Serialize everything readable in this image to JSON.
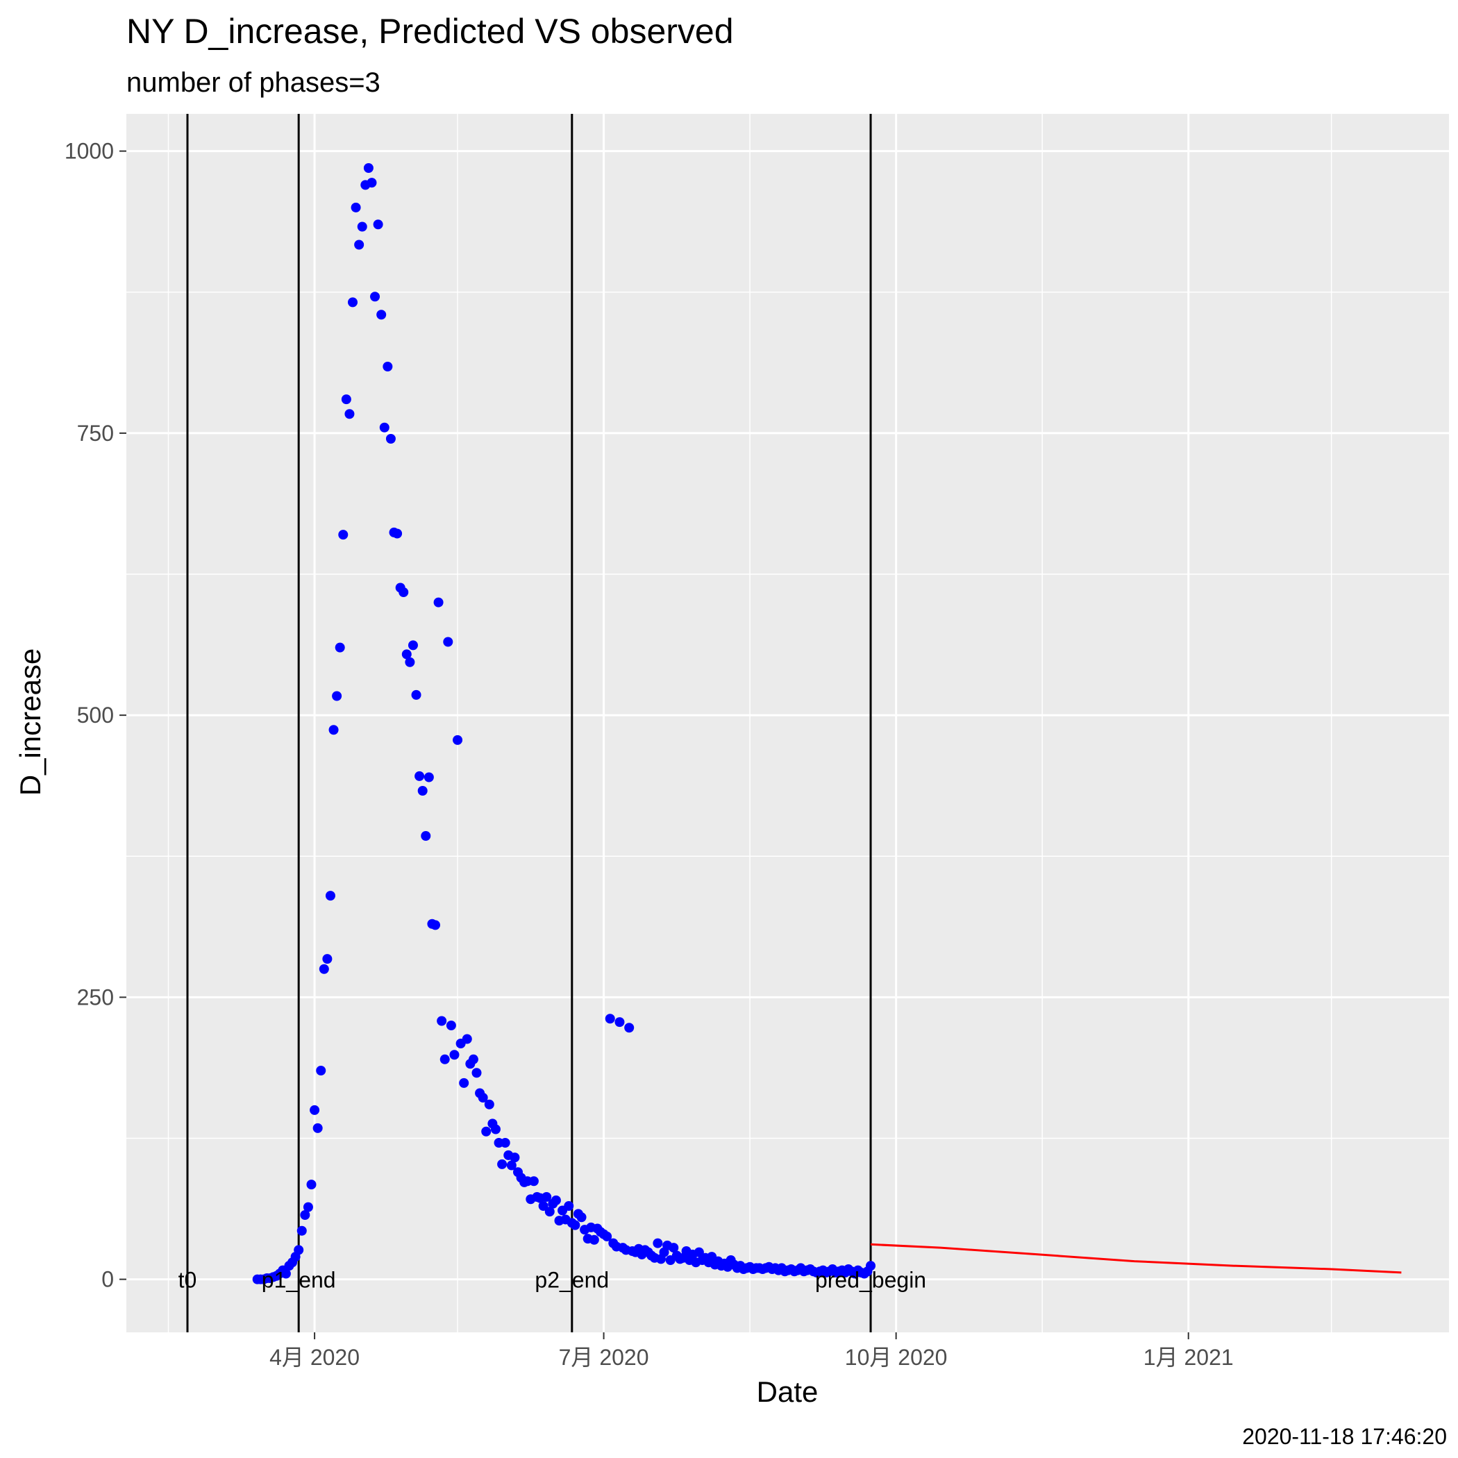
{
  "chart_data": {
    "type": "scatter",
    "title": "NY D_increase, Predicted VS observed",
    "subtitle": "number of phases=3",
    "xlabel": "Date",
    "ylabel": "D_increase",
    "caption": "2020-11-18 17:46:20",
    "x_type": "date",
    "xlim": [
      "2020-02-21",
      "2021-03-17"
    ],
    "ylim": [
      -47,
      1033
    ],
    "x_ticks": [
      {
        "date": "2020-04-01",
        "label": "4月 2020"
      },
      {
        "date": "2020-07-01",
        "label": "7月 2020"
      },
      {
        "date": "2020-10-01",
        "label": "10月 2020"
      },
      {
        "date": "2021-01-01",
        "label": "1月 2021"
      }
    ],
    "x_minor_ticks": [
      "2020-02-15",
      "2020-05-16",
      "2020-08-16",
      "2020-11-16",
      "2021-02-15"
    ],
    "y_ticks": [
      0,
      250,
      500,
      750,
      1000
    ],
    "y_minor_ticks": [
      125,
      375,
      625,
      875
    ],
    "grid": true,
    "vlines": [
      {
        "date": "2020-02-21",
        "label": "t0"
      },
      {
        "date": "2020-03-27",
        "label": "p1_end"
      },
      {
        "date": "2020-06-21",
        "label": "p2_end"
      },
      {
        "date": "2020-09-23",
        "label": "pred_begin"
      }
    ],
    "series": [
      {
        "kind": "points",
        "color": "#0000ff",
        "points": [
          [
            "2020-03-14",
            0
          ],
          [
            "2020-03-15",
            0
          ],
          [
            "2020-03-16",
            0
          ],
          [
            "2020-03-17",
            1
          ],
          [
            "2020-03-18",
            1
          ],
          [
            "2020-03-19",
            2
          ],
          [
            "2020-03-20",
            3
          ],
          [
            "2020-03-21",
            5
          ],
          [
            "2020-03-22",
            8
          ],
          [
            "2020-03-23",
            5
          ],
          [
            "2020-03-24",
            12
          ],
          [
            "2020-03-25",
            15
          ],
          [
            "2020-03-26",
            20
          ],
          [
            "2020-03-27",
            26
          ],
          [
            "2020-03-28",
            43
          ],
          [
            "2020-03-29",
            57
          ],
          [
            "2020-03-30",
            64
          ],
          [
            "2020-03-31",
            84
          ],
          [
            "2020-04-01",
            150
          ],
          [
            "2020-04-02",
            134
          ],
          [
            "2020-04-03",
            185
          ],
          [
            "2020-04-04",
            275
          ],
          [
            "2020-04-05",
            284
          ],
          [
            "2020-04-06",
            340
          ],
          [
            "2020-04-07",
            487
          ],
          [
            "2020-04-08",
            517
          ],
          [
            "2020-04-09",
            560
          ],
          [
            "2020-04-10",
            660
          ],
          [
            "2020-04-11",
            780
          ],
          [
            "2020-04-12",
            767
          ],
          [
            "2020-04-13",
            866
          ],
          [
            "2020-04-14",
            950
          ],
          [
            "2020-04-15",
            917
          ],
          [
            "2020-04-16",
            933
          ],
          [
            "2020-04-17",
            970
          ],
          [
            "2020-04-18",
            985
          ],
          [
            "2020-04-19",
            972
          ],
          [
            "2020-04-20",
            871
          ],
          [
            "2020-04-21",
            935
          ],
          [
            "2020-04-22",
            855
          ],
          [
            "2020-04-23",
            755
          ],
          [
            "2020-04-24",
            809
          ],
          [
            "2020-04-25",
            745
          ],
          [
            "2020-04-26",
            662
          ],
          [
            "2020-04-27",
            661
          ],
          [
            "2020-04-28",
            613
          ],
          [
            "2020-04-29",
            609
          ],
          [
            "2020-04-30",
            554
          ],
          [
            "2020-05-01",
            547
          ],
          [
            "2020-05-02",
            562
          ],
          [
            "2020-05-03",
            518
          ],
          [
            "2020-05-04",
            446
          ],
          [
            "2020-05-05",
            433
          ],
          [
            "2020-05-06",
            393
          ],
          [
            "2020-05-07",
            445
          ],
          [
            "2020-05-08",
            315
          ],
          [
            "2020-05-09",
            314
          ],
          [
            "2020-05-10",
            600
          ],
          [
            "2020-05-11",
            229
          ],
          [
            "2020-05-12",
            195
          ],
          [
            "2020-05-13",
            565
          ],
          [
            "2020-05-14",
            225
          ],
          [
            "2020-05-15",
            199
          ],
          [
            "2020-05-16",
            478
          ],
          [
            "2020-05-17",
            209
          ],
          [
            "2020-05-18",
            174
          ],
          [
            "2020-05-19",
            213
          ],
          [
            "2020-05-20",
            191
          ],
          [
            "2020-05-21",
            195
          ],
          [
            "2020-05-22",
            183
          ],
          [
            "2020-05-23",
            165
          ],
          [
            "2020-05-24",
            161
          ],
          [
            "2020-05-25",
            131
          ],
          [
            "2020-05-26",
            155
          ],
          [
            "2020-05-27",
            138
          ],
          [
            "2020-05-28",
            133
          ],
          [
            "2020-05-29",
            121
          ],
          [
            "2020-05-30",
            102
          ],
          [
            "2020-05-31",
            121
          ],
          [
            "2020-06-01",
            110
          ],
          [
            "2020-06-02",
            101
          ],
          [
            "2020-06-03",
            108
          ],
          [
            "2020-06-04",
            95
          ],
          [
            "2020-06-05",
            90
          ],
          [
            "2020-06-06",
            86
          ],
          [
            "2020-06-07",
            87
          ],
          [
            "2020-06-08",
            71
          ],
          [
            "2020-06-09",
            87
          ],
          [
            "2020-06-10",
            73
          ],
          [
            "2020-06-11",
            72
          ],
          [
            "2020-06-12",
            65
          ],
          [
            "2020-06-13",
            73
          ],
          [
            "2020-06-14",
            60
          ],
          [
            "2020-06-15",
            67
          ],
          [
            "2020-06-16",
            70
          ],
          [
            "2020-06-17",
            52
          ],
          [
            "2020-06-18",
            61
          ],
          [
            "2020-06-19",
            53
          ],
          [
            "2020-06-20",
            65
          ],
          [
            "2020-06-21",
            50
          ],
          [
            "2020-06-22",
            48
          ],
          [
            "2020-06-23",
            58
          ],
          [
            "2020-06-24",
            55
          ],
          [
            "2020-06-25",
            44
          ],
          [
            "2020-06-26",
            36
          ],
          [
            "2020-06-27",
            46
          ],
          [
            "2020-06-28",
            35
          ],
          [
            "2020-06-29",
            45
          ],
          [
            "2020-06-30",
            42
          ],
          [
            "2020-07-01",
            40
          ],
          [
            "2020-07-02",
            38
          ],
          [
            "2020-07-03",
            231
          ],
          [
            "2020-07-04",
            32
          ],
          [
            "2020-07-05",
            29
          ],
          [
            "2020-07-06",
            228
          ],
          [
            "2020-07-07",
            28
          ],
          [
            "2020-07-08",
            26
          ],
          [
            "2020-07-09",
            223
          ],
          [
            "2020-07-10",
            25
          ],
          [
            "2020-07-11",
            24
          ],
          [
            "2020-07-12",
            27
          ],
          [
            "2020-07-13",
            22
          ],
          [
            "2020-07-14",
            26
          ],
          [
            "2020-07-15",
            24
          ],
          [
            "2020-07-16",
            21
          ],
          [
            "2020-07-17",
            19
          ],
          [
            "2020-07-18",
            32
          ],
          [
            "2020-07-19",
            18
          ],
          [
            "2020-07-20",
            24
          ],
          [
            "2020-07-21",
            30
          ],
          [
            "2020-07-22",
            17
          ],
          [
            "2020-07-23",
            28
          ],
          [
            "2020-07-24",
            21
          ],
          [
            "2020-07-25",
            18
          ],
          [
            "2020-07-26",
            19
          ],
          [
            "2020-07-27",
            25
          ],
          [
            "2020-07-28",
            17
          ],
          [
            "2020-07-29",
            22
          ],
          [
            "2020-07-30",
            15
          ],
          [
            "2020-07-31",
            24
          ],
          [
            "2020-08-01",
            17
          ],
          [
            "2020-08-02",
            19
          ],
          [
            "2020-08-03",
            15
          ],
          [
            "2020-08-04",
            20
          ],
          [
            "2020-08-05",
            13
          ],
          [
            "2020-08-06",
            16
          ],
          [
            "2020-08-07",
            12
          ],
          [
            "2020-08-08",
            14
          ],
          [
            "2020-08-09",
            11
          ],
          [
            "2020-08-10",
            17
          ],
          [
            "2020-08-11",
            13
          ],
          [
            "2020-08-12",
            10
          ],
          [
            "2020-08-13",
            12
          ],
          [
            "2020-08-14",
            9
          ],
          [
            "2020-08-15",
            10
          ],
          [
            "2020-08-16",
            11
          ],
          [
            "2020-08-17",
            9
          ],
          [
            "2020-08-18",
            10
          ],
          [
            "2020-08-19",
            10
          ],
          [
            "2020-08-20",
            9
          ],
          [
            "2020-08-21",
            10
          ],
          [
            "2020-08-22",
            11
          ],
          [
            "2020-08-23",
            9
          ],
          [
            "2020-08-24",
            10
          ],
          [
            "2020-08-25",
            8
          ],
          [
            "2020-08-26",
            10
          ],
          [
            "2020-08-27",
            7
          ],
          [
            "2020-08-28",
            8
          ],
          [
            "2020-08-29",
            9
          ],
          [
            "2020-08-30",
            7
          ],
          [
            "2020-08-31",
            8
          ],
          [
            "2020-09-01",
            10
          ],
          [
            "2020-09-02",
            7
          ],
          [
            "2020-09-03",
            8
          ],
          [
            "2020-09-04",
            9
          ],
          [
            "2020-09-05",
            7
          ],
          [
            "2020-09-06",
            6
          ],
          [
            "2020-09-07",
            7
          ],
          [
            "2020-09-08",
            8
          ],
          [
            "2020-09-09",
            6
          ],
          [
            "2020-09-10",
            7
          ],
          [
            "2020-09-11",
            9
          ],
          [
            "2020-09-12",
            6
          ],
          [
            "2020-09-13",
            7
          ],
          [
            "2020-09-14",
            8
          ],
          [
            "2020-09-15",
            6
          ],
          [
            "2020-09-16",
            9
          ],
          [
            "2020-09-17",
            7
          ],
          [
            "2020-09-18",
            5
          ],
          [
            "2020-09-19",
            8
          ],
          [
            "2020-09-20",
            6
          ],
          [
            "2020-09-21",
            5
          ],
          [
            "2020-09-22",
            7
          ],
          [
            "2020-09-23",
            12
          ]
        ]
      },
      {
        "kind": "line",
        "color": "#ff0000",
        "points": [
          [
            "2020-09-23",
            31
          ],
          [
            "2020-10-15",
            28
          ],
          [
            "2020-11-15",
            22
          ],
          [
            "2020-12-15",
            16
          ],
          [
            "2021-01-15",
            12
          ],
          [
            "2021-02-15",
            9
          ],
          [
            "2021-03-09",
            6
          ]
        ]
      }
    ]
  }
}
